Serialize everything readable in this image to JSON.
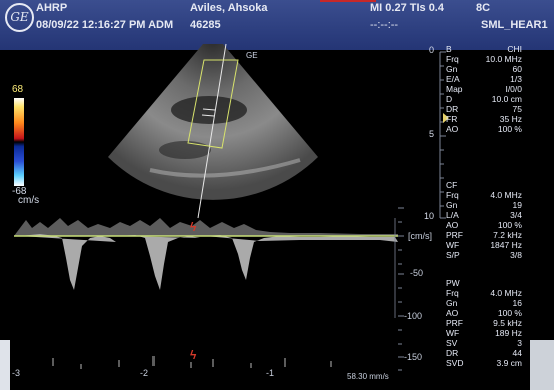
{
  "header": {
    "logo_text": "GE",
    "site": "AHRP",
    "datetime_operator": "08/09/22 12:16:27 PM ADM",
    "patient_name": "Aviles, Ahsoka",
    "patient_id": "46285",
    "indices": "MI 0.27  TIs 0.4",
    "probe": "8C",
    "timer": "--:--:--",
    "preset": "SML_HEAR1"
  },
  "color_bar": {
    "top": "68",
    "bottom": "-68",
    "unit": "cm/s"
  },
  "bmode": {
    "rows": [
      {
        "key": "B",
        "val": "CHI"
      },
      {
        "key": "Frq",
        "val": "10.0 MHz"
      },
      {
        "key": "Gn",
        "val": "60"
      },
      {
        "key": "E/A",
        "val": "1/3"
      },
      {
        "key": "Map",
        "val": "I/0/0"
      },
      {
        "key": "D",
        "val": "10.0 cm"
      },
      {
        "key": "DR",
        "val": "75"
      },
      {
        "key": "FR",
        "val": "35 Hz"
      },
      {
        "key": "AO",
        "val": "100 %"
      }
    ]
  },
  "color_flow": {
    "rows": [
      {
        "key": "CF",
        "val": ""
      },
      {
        "key": "Frq",
        "val": "4.0 MHz"
      },
      {
        "key": "Gn",
        "val": "19"
      },
      {
        "key": "L/A",
        "val": "3/4"
      },
      {
        "key": "AO",
        "val": "100 %"
      },
      {
        "key": "PRF",
        "val": "7.2 kHz"
      },
      {
        "key": "WF",
        "val": "1847 Hz"
      },
      {
        "key": "S/P",
        "val": "3/8"
      }
    ]
  },
  "pw": {
    "rows": [
      {
        "key": "PW",
        "val": ""
      },
      {
        "key": "Frq",
        "val": "4.0 MHz"
      },
      {
        "key": "Gn",
        "val": "16"
      },
      {
        "key": "AO",
        "val": "100 %"
      },
      {
        "key": "PRF",
        "val": "9.5 kHz"
      },
      {
        "key": "WF",
        "val": "189 Hz"
      },
      {
        "key": "SV",
        "val": "3"
      },
      {
        "key": "DR",
        "val": "44"
      },
      {
        "key": "SVD",
        "val": "3.9 cm"
      }
    ]
  },
  "depth_labels": [
    "0",
    "5",
    "10"
  ],
  "doppler": {
    "unit": "[cm/s]",
    "scale": [
      "-50",
      "-100",
      "-150"
    ],
    "sweep_speed": "58.30 mm/s",
    "time_labels": [
      "-3",
      "-2",
      "-1"
    ]
  },
  "colors": {
    "header_bg": "#2e3f82",
    "baseline": "#c9e07a",
    "sample_gate": "#d8e36c",
    "ecg_marker": "#d53a2a"
  }
}
